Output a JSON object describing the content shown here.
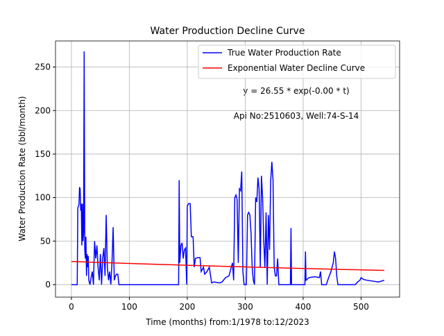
{
  "chart_data": {
    "type": "line",
    "title": "Water Production Decline Curve",
    "xlabel": "Time (months) from:1/1978 to:12/2023",
    "ylabel": "Water Production Rate (bbl/month)",
    "annotations": [
      "y = 26.55 * exp(-0.00 * t)",
      "Api No:2510603, Well:74-S-14"
    ],
    "xlim": [
      -27.5,
      566.5
    ],
    "ylim": [
      -14.4,
      280
    ],
    "xticks": [
      0,
      100,
      200,
      300,
      400,
      500
    ],
    "yticks": [
      0,
      50,
      100,
      150,
      200,
      250
    ],
    "grid": true,
    "legend": "upper right",
    "series": [
      {
        "name": "True Water Production Rate",
        "color": "#0000ff",
        "x": [
          0,
          10,
          11,
          13,
          14,
          15,
          16,
          17,
          18,
          19,
          20,
          21,
          22,
          23,
          24,
          25,
          26,
          27,
          28,
          29,
          30,
          32,
          34,
          36,
          38,
          40,
          42,
          44,
          46,
          48,
          50,
          52,
          54,
          56,
          58,
          60,
          62,
          64,
          66,
          68,
          70,
          72,
          74,
          76,
          78,
          80,
          82,
          100,
          150,
          185,
          186,
          187,
          189,
          191,
          193,
          195,
          197,
          199,
          200,
          202,
          205,
          207,
          210,
          212,
          214,
          218,
          222,
          224,
          228,
          230,
          234,
          238,
          242,
          246,
          256,
          260,
          266,
          272,
          278,
          280,
          282,
          284,
          286,
          288,
          290,
          292,
          294,
          296,
          298,
          302,
          304,
          306,
          308,
          310,
          312,
          314,
          316,
          318,
          320,
          322,
          324,
          326,
          328,
          330,
          332,
          334,
          336,
          338,
          340,
          342,
          344,
          346,
          348,
          350,
          352,
          354,
          356,
          358,
          378,
          379,
          380,
          403,
          404,
          405,
          410,
          420,
          428,
          430,
          432,
          440,
          444,
          448,
          452,
          454,
          456,
          458,
          460,
          490,
          494,
          498,
          500,
          504,
          510,
          520,
          530,
          540
        ],
        "values": [
          0,
          0,
          88,
          92,
          112,
          110,
          85,
          93,
          45,
          93,
          50,
          60,
          268,
          40,
          30,
          55,
          10,
          35,
          20,
          33,
          5,
          0,
          8,
          15,
          0,
          50,
          30,
          45,
          20,
          5,
          35,
          0,
          30,
          42,
          10,
          80,
          20,
          5,
          15,
          0,
          25,
          66,
          5,
          10,
          12,
          12,
          0,
          0,
          0,
          0,
          120,
          25,
          45,
          48,
          30,
          40,
          42,
          0,
          90,
          93,
          93,
          55,
          55,
          20,
          30,
          31,
          31,
          15,
          20,
          12,
          15,
          20,
          2,
          3,
          2,
          3,
          8,
          10,
          25,
          5,
          100,
          103,
          98,
          25,
          110,
          108,
          130,
          15,
          0,
          0,
          80,
          83,
          80,
          60,
          20,
          5,
          0,
          100,
          95,
          123,
          110,
          20,
          125,
          100,
          50,
          20,
          83,
          0,
          80,
          40,
          120,
          141,
          120,
          20,
          10,
          10,
          30,
          0,
          0,
          65,
          0,
          0,
          38,
          5,
          8,
          9,
          8,
          15,
          0,
          0,
          8,
          15,
          25,
          38,
          30,
          10,
          0,
          0,
          3,
          5,
          8,
          6,
          5,
          4,
          3,
          5
        ]
      },
      {
        "name": "Exponential Water Decline Curve",
        "color": "#ff0000",
        "x": [
          0,
          100,
          200,
          300,
          400,
          500,
          540
        ],
        "values": [
          26.55,
          24.27,
          22.18,
          20.27,
          18.53,
          16.94,
          16.33
        ]
      }
    ]
  }
}
